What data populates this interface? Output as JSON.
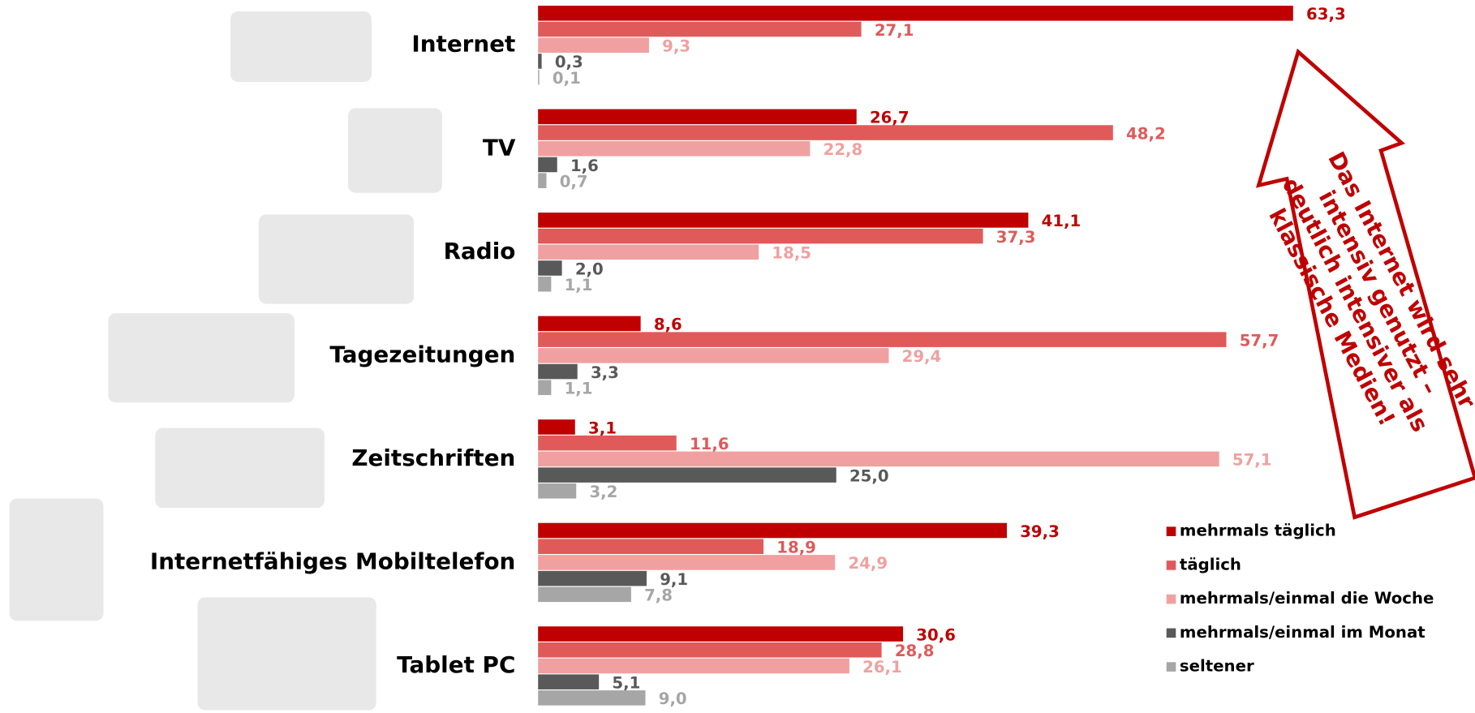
{
  "chart_data": {
    "type": "bar",
    "orientation": "horizontal",
    "categories": [
      "Internet",
      "TV",
      "Radio",
      "Tagezeitungen",
      "Zeitschriften",
      "Internetfähiges Mobiltelefon",
      "Tablet PC"
    ],
    "series": [
      {
        "name": "mehrmals täglich",
        "color": "#c00000",
        "values": [
          63.3,
          26.7,
          41.1,
          8.6,
          3.1,
          39.3,
          30.6
        ],
        "value_labels": [
          "63,3",
          "26,7",
          "41,1",
          "8,6",
          "3,1",
          "39,3",
          "30,6"
        ]
      },
      {
        "name": "täglich",
        "color": "#e05a5a",
        "values": [
          27.1,
          48.2,
          37.3,
          57.7,
          11.6,
          18.9,
          28.8
        ],
        "value_labels": [
          "27,1",
          "48,2",
          "37,3",
          "57,7",
          "11,6",
          "18,9",
          "28,8"
        ]
      },
      {
        "name": "mehrmals/einmal die Woche",
        "color": "#f0a0a0",
        "values": [
          9.3,
          22.8,
          18.5,
          29.4,
          57.1,
          24.9,
          26.1
        ],
        "value_labels": [
          "9,3",
          "22,8",
          "18,5",
          "29,4",
          "57,1",
          "24,9",
          "26,1"
        ]
      },
      {
        "name": "mehrmals/einmal im Monat",
        "color": "#595959",
        "values": [
          0.3,
          1.6,
          2.0,
          3.3,
          25.0,
          9.1,
          5.1
        ],
        "value_labels": [
          "0,3",
          "1,6",
          "2,0",
          "3,3",
          "25,0",
          "9,1",
          "5,1"
        ]
      },
      {
        "name": "seltener",
        "color": "#a6a6a6",
        "values": [
          0.1,
          0.7,
          1.1,
          1.1,
          3.2,
          7.8,
          9.0
        ],
        "value_labels": [
          "0,1",
          "0,7",
          "1,1",
          "1,1",
          "3,2",
          "7,8",
          "9,0"
        ]
      }
    ],
    "annotation": [
      "Das Internet wird sehr",
      "intensiv genutzt –",
      "deutlich intensiver als",
      "klassische Medien!"
    ]
  }
}
